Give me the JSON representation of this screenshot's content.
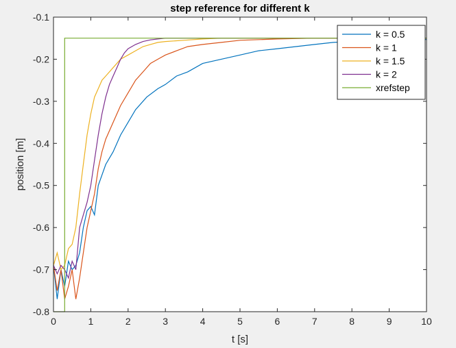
{
  "chart_data": {
    "type": "line",
    "title": "step reference for different k",
    "xlabel": "t [s]",
    "ylabel": "position [m]",
    "xlim": [
      0,
      10
    ],
    "ylim": [
      -0.8,
      -0.1
    ],
    "x_ticks": [
      "0",
      "1",
      "2",
      "3",
      "4",
      "5",
      "6",
      "7",
      "8",
      "9",
      "10"
    ],
    "y_ticks": [
      "-0.8",
      "-0.7",
      "-0.6",
      "-0.5",
      "-0.4",
      "-0.3",
      "-0.2",
      "-0.1"
    ],
    "grid": false,
    "legend_position": "top-right",
    "background_color": "#ffffff",
    "figure_color": "#f0f0f0",
    "series": [
      {
        "name": "k = 0.5",
        "color": "#0072bd",
        "x": [
          0,
          0.1,
          0.2,
          0.3,
          0.4,
          0.5,
          0.6,
          0.7,
          0.8,
          0.9,
          1.0,
          1.1,
          1.2,
          1.4,
          1.6,
          1.8,
          2.0,
          2.2,
          2.5,
          2.8,
          3.0,
          3.3,
          3.6,
          4.0,
          4.5,
          5.0,
          5.5,
          6.0,
          6.5,
          7.0,
          7.5,
          8.0,
          9.0,
          10.0
        ],
        "y": [
          -0.69,
          -0.77,
          -0.7,
          -0.74,
          -0.68,
          -0.7,
          -0.69,
          -0.66,
          -0.6,
          -0.56,
          -0.55,
          -0.57,
          -0.5,
          -0.45,
          -0.42,
          -0.38,
          -0.35,
          -0.32,
          -0.29,
          -0.27,
          -0.26,
          -0.24,
          -0.23,
          -0.21,
          -0.2,
          -0.19,
          -0.18,
          -0.175,
          -0.17,
          -0.165,
          -0.16,
          -0.158,
          -0.155,
          -0.153
        ]
      },
      {
        "name": "k = 1",
        "color": "#d95319",
        "x": [
          0,
          0.1,
          0.2,
          0.3,
          0.4,
          0.5,
          0.6,
          0.7,
          0.8,
          0.9,
          1.0,
          1.1,
          1.2,
          1.3,
          1.4,
          1.6,
          1.8,
          2.0,
          2.2,
          2.4,
          2.6,
          2.8,
          3.0,
          3.3,
          3.6,
          4.0,
          4.5,
          5.0,
          6.0,
          7.0,
          8.0,
          10.0
        ],
        "y": [
          -0.69,
          -0.75,
          -0.7,
          -0.77,
          -0.74,
          -0.7,
          -0.77,
          -0.72,
          -0.66,
          -0.6,
          -0.56,
          -0.52,
          -0.46,
          -0.42,
          -0.39,
          -0.35,
          -0.31,
          -0.28,
          -0.25,
          -0.23,
          -0.21,
          -0.2,
          -0.19,
          -0.18,
          -0.17,
          -0.165,
          -0.16,
          -0.155,
          -0.152,
          -0.15,
          -0.15,
          -0.15
        ]
      },
      {
        "name": "k = 1.5",
        "color": "#edb120",
        "x": [
          0,
          0.1,
          0.2,
          0.3,
          0.4,
          0.5,
          0.6,
          0.7,
          0.8,
          0.9,
          1.0,
          1.1,
          1.2,
          1.3,
          1.4,
          1.5,
          1.6,
          1.8,
          2.0,
          2.2,
          2.4,
          2.6,
          2.8,
          3.0,
          3.5,
          4.0,
          4.5,
          5.0,
          6.0,
          8.0,
          10.0
        ],
        "y": [
          -0.69,
          -0.66,
          -0.7,
          -0.69,
          -0.65,
          -0.64,
          -0.6,
          -0.52,
          -0.45,
          -0.38,
          -0.33,
          -0.29,
          -0.27,
          -0.25,
          -0.24,
          -0.23,
          -0.22,
          -0.2,
          -0.19,
          -0.18,
          -0.17,
          -0.165,
          -0.16,
          -0.158,
          -0.155,
          -0.152,
          -0.15,
          -0.15,
          -0.15,
          -0.15,
          -0.15
        ]
      },
      {
        "name": "k = 2",
        "color": "#7e2f8e",
        "x": [
          0,
          0.1,
          0.2,
          0.3,
          0.4,
          0.5,
          0.6,
          0.7,
          0.8,
          0.9,
          1.0,
          1.1,
          1.2,
          1.3,
          1.4,
          1.5,
          1.6,
          1.7,
          1.8,
          1.9,
          2.0,
          2.2,
          2.4,
          2.6,
          2.8,
          3.0,
          3.5,
          4.0,
          5.0,
          6.0,
          8.0,
          10.0
        ],
        "y": [
          -0.69,
          -0.71,
          -0.69,
          -0.7,
          -0.72,
          -0.68,
          -0.7,
          -0.6,
          -0.57,
          -0.54,
          -0.5,
          -0.44,
          -0.38,
          -0.33,
          -0.29,
          -0.26,
          -0.24,
          -0.22,
          -0.2,
          -0.185,
          -0.175,
          -0.165,
          -0.158,
          -0.154,
          -0.152,
          -0.15,
          -0.15,
          -0.15,
          -0.15,
          -0.15,
          -0.15,
          -0.15
        ]
      },
      {
        "name": "xrefstep",
        "color": "#77ac30",
        "x": [
          0,
          0.3,
          0.3,
          10.0
        ],
        "y": [
          -0.8,
          -0.8,
          -0.15,
          -0.15
        ]
      }
    ]
  }
}
